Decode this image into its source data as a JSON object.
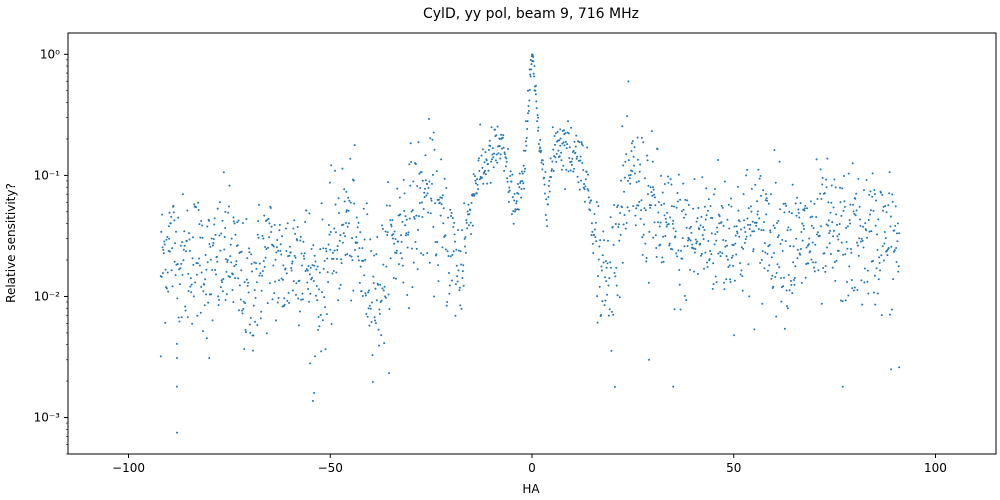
{
  "chart_data": {
    "type": "scatter",
    "title": "CylD, yy pol, beam 9, 716 MHz",
    "xlabel": "HA",
    "ylabel": "Relative sensitivity?",
    "xlim": [
      -115,
      115
    ],
    "ylim": [
      0.0005,
      1.5
    ],
    "yscale": "log",
    "xticks": [
      -100,
      -50,
      0,
      50,
      100
    ],
    "yticks": [
      0.001,
      0.01,
      0.1,
      1
    ],
    "ytick_labels": [
      "10⁻³",
      "10⁻²",
      "10⁻¹",
      "10⁰"
    ],
    "xtick_labels": [
      "−100",
      "−50",
      "0",
      "50",
      "100"
    ],
    "grid": false,
    "legend": "none",
    "marker_color": "#1f77b4",
    "x_range_of_points": [
      -92,
      91
    ],
    "envelope": [
      {
        "x": -92,
        "y": 0.018
      },
      {
        "x": -90,
        "y": 0.028
      },
      {
        "x": -88,
        "y": 0.022
      },
      {
        "x": -86,
        "y": 0.018
      },
      {
        "x": -84,
        "y": 0.022
      },
      {
        "x": -82,
        "y": 0.02
      },
      {
        "x": -80,
        "y": 0.016
      },
      {
        "x": -78,
        "y": 0.018
      },
      {
        "x": -76,
        "y": 0.022
      },
      {
        "x": -74,
        "y": 0.02
      },
      {
        "x": -72,
        "y": 0.012
      },
      {
        "x": -70,
        "y": 0.01
      },
      {
        "x": -68,
        "y": 0.016
      },
      {
        "x": -66,
        "y": 0.022
      },
      {
        "x": -64,
        "y": 0.02
      },
      {
        "x": -62,
        "y": 0.016
      },
      {
        "x": -60,
        "y": 0.02
      },
      {
        "x": -58,
        "y": 0.024
      },
      {
        "x": -56,
        "y": 0.02
      },
      {
        "x": -54,
        "y": 0.012
      },
      {
        "x": -52,
        "y": 0.014
      },
      {
        "x": -50,
        "y": 0.02
      },
      {
        "x": -48,
        "y": 0.03
      },
      {
        "x": -46,
        "y": 0.042
      },
      {
        "x": -44,
        "y": 0.03
      },
      {
        "x": -42,
        "y": 0.018
      },
      {
        "x": -40,
        "y": 0.014
      },
      {
        "x": -38,
        "y": 0.01
      },
      {
        "x": -36,
        "y": 0.018
      },
      {
        "x": -34,
        "y": 0.03
      },
      {
        "x": -32,
        "y": 0.04
      },
      {
        "x": -30,
        "y": 0.045
      },
      {
        "x": -28,
        "y": 0.055
      },
      {
        "x": -26,
        "y": 0.07
      },
      {
        "x": -24,
        "y": 0.05
      },
      {
        "x": -22,
        "y": 0.035
      },
      {
        "x": -20,
        "y": 0.025
      },
      {
        "x": -18,
        "y": 0.015
      },
      {
        "x": -16,
        "y": 0.04
      },
      {
        "x": -14,
        "y": 0.09
      },
      {
        "x": -12,
        "y": 0.12
      },
      {
        "x": -10,
        "y": 0.14
      },
      {
        "x": -8,
        "y": 0.18
      },
      {
        "x": -6,
        "y": 0.1
      },
      {
        "x": -4,
        "y": 0.05
      },
      {
        "x": -2,
        "y": 0.1
      },
      {
        "x": 0,
        "y": 1.0
      },
      {
        "x": 2,
        "y": 0.15
      },
      {
        "x": 4,
        "y": 0.07
      },
      {
        "x": 6,
        "y": 0.2
      },
      {
        "x": 8,
        "y": 0.17
      },
      {
        "x": 10,
        "y": 0.16
      },
      {
        "x": 12,
        "y": 0.14
      },
      {
        "x": 14,
        "y": 0.08
      },
      {
        "x": 16,
        "y": 0.025
      },
      {
        "x": 18,
        "y": 0.012
      },
      {
        "x": 20,
        "y": 0.018
      },
      {
        "x": 22,
        "y": 0.05
      },
      {
        "x": 24,
        "y": 0.08
      },
      {
        "x": 26,
        "y": 0.08
      },
      {
        "x": 28,
        "y": 0.06
      },
      {
        "x": 30,
        "y": 0.05
      },
      {
        "x": 35,
        "y": 0.03
      },
      {
        "x": 40,
        "y": 0.03
      },
      {
        "x": 45,
        "y": 0.035
      },
      {
        "x": 50,
        "y": 0.03
      },
      {
        "x": 55,
        "y": 0.035
      },
      {
        "x": 60,
        "y": 0.035
      },
      {
        "x": 65,
        "y": 0.025
      },
      {
        "x": 70,
        "y": 0.03
      },
      {
        "x": 75,
        "y": 0.03
      },
      {
        "x": 80,
        "y": 0.03
      },
      {
        "x": 85,
        "y": 0.03
      },
      {
        "x": 91,
        "y": 0.028
      }
    ],
    "points": [
      {
        "x": 0,
        "y": 1.0
      },
      {
        "x": 0.3,
        "y": 0.95
      },
      {
        "x": -0.3,
        "y": 0.9
      },
      {
        "x": 0.6,
        "y": 0.8
      },
      {
        "x": -0.6,
        "y": 0.75
      },
      {
        "x": 1.0,
        "y": 0.55
      },
      {
        "x": -1.0,
        "y": 0.5
      },
      {
        "x": 1.5,
        "y": 0.3
      },
      {
        "x": -1.5,
        "y": 0.28
      },
      {
        "x": 2.0,
        "y": 0.17
      },
      {
        "x": -2.0,
        "y": 0.16
      },
      {
        "x": -88,
        "y": 0.00075
      },
      {
        "x": -88,
        "y": 0.0018
      },
      {
        "x": -54,
        "y": 0.0016
      },
      {
        "x": -92,
        "y": 0.0032
      },
      {
        "x": -88,
        "y": 0.0031
      },
      {
        "x": -80,
        "y": 0.0031
      },
      {
        "x": -55,
        "y": 0.0028
      },
      {
        "x": 29,
        "y": 0.003
      },
      {
        "x": 35,
        "y": 0.0018
      },
      {
        "x": 77,
        "y": 0.0018
      },
      {
        "x": 89,
        "y": 0.0025
      },
      {
        "x": 91,
        "y": 0.0026
      },
      {
        "x": -90,
        "y": 0.038
      },
      {
        "x": -82,
        "y": 0.042
      },
      {
        "x": -76,
        "y": 0.05
      },
      {
        "x": -74,
        "y": 0.045
      },
      {
        "x": -46,
        "y": 0.05
      },
      {
        "x": -26,
        "y": 0.085
      },
      {
        "x": -8,
        "y": 0.2
      },
      {
        "x": 7,
        "y": 0.24
      },
      {
        "x": 8,
        "y": 0.22
      },
      {
        "x": 24,
        "y": 0.1
      },
      {
        "x": 30,
        "y": 0.08
      },
      {
        "x": 58,
        "y": 0.07
      },
      {
        "x": 73,
        "y": 0.08
      },
      {
        "x": 80,
        "y": 0.065
      },
      {
        "x": 85,
        "y": 0.07
      }
    ]
  }
}
